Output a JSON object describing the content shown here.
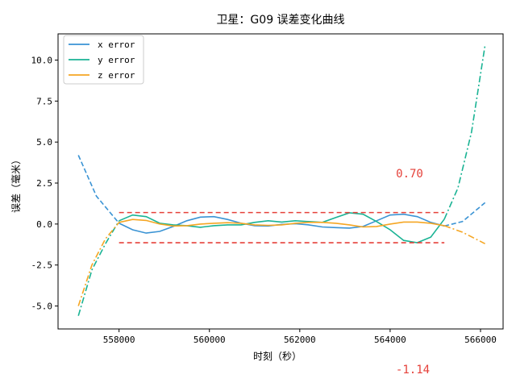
{
  "chart_data": {
    "type": "line",
    "title": "卫星：G09 误差变化曲线",
    "xlabel": "时刻（秒）",
    "ylabel": "误差（毫米）",
    "xlim": [
      556650,
      566500
    ],
    "ylim": [
      -6.4,
      11.6
    ],
    "xticks": [
      558000,
      560000,
      562000,
      564000,
      566000
    ],
    "yticks": [
      -5.0,
      -2.5,
      0.0,
      2.5,
      5.0,
      7.5,
      10.0
    ],
    "legend_position": "top-left",
    "grid": false,
    "fit_range": [
      558000,
      565200
    ],
    "series": [
      {
        "name": "x error",
        "color": "#3a93d4",
        "points": [
          [
            557100,
            4.2
          ],
          [
            557500,
            1.7
          ],
          [
            558000,
            0.05
          ],
          [
            558300,
            -0.35
          ],
          [
            558600,
            -0.55
          ],
          [
            558900,
            -0.45
          ],
          [
            559200,
            -0.15
          ],
          [
            559500,
            0.2
          ],
          [
            559800,
            0.42
          ],
          [
            560100,
            0.45
          ],
          [
            560400,
            0.28
          ],
          [
            560700,
            0.05
          ],
          [
            561000,
            -0.1
          ],
          [
            561300,
            -0.12
          ],
          [
            561600,
            -0.02
          ],
          [
            561900,
            0.02
          ],
          [
            562200,
            -0.05
          ],
          [
            562500,
            -0.18
          ],
          [
            562800,
            -0.22
          ],
          [
            563100,
            -0.25
          ],
          [
            563400,
            -0.15
          ],
          [
            563700,
            0.2
          ],
          [
            564000,
            0.55
          ],
          [
            564300,
            0.6
          ],
          [
            564600,
            0.45
          ],
          [
            564900,
            0.1
          ],
          [
            565200,
            -0.12
          ],
          [
            565600,
            0.15
          ],
          [
            566100,
            1.3
          ]
        ]
      },
      {
        "name": "y error",
        "color": "#1ab394",
        "points": [
          [
            557100,
            -5.6
          ],
          [
            557400,
            -2.8
          ],
          [
            557700,
            -1.2
          ],
          [
            558000,
            0.2
          ],
          [
            558300,
            0.55
          ],
          [
            558600,
            0.45
          ],
          [
            558900,
            0.05
          ],
          [
            559200,
            -0.05
          ],
          [
            559500,
            -0.1
          ],
          [
            559800,
            -0.2
          ],
          [
            560100,
            -0.1
          ],
          [
            560400,
            -0.05
          ],
          [
            560700,
            -0.05
          ],
          [
            561000,
            0.1
          ],
          [
            561300,
            0.2
          ],
          [
            561600,
            0.12
          ],
          [
            561900,
            0.2
          ],
          [
            562200,
            0.15
          ],
          [
            562500,
            0.1
          ],
          [
            562800,
            0.4
          ],
          [
            563100,
            0.68
          ],
          [
            563400,
            0.6
          ],
          [
            563700,
            0.15
          ],
          [
            564000,
            -0.35
          ],
          [
            564300,
            -1.0
          ],
          [
            564600,
            -1.14
          ],
          [
            564900,
            -0.8
          ],
          [
            565200,
            0.3
          ],
          [
            565500,
            2.2
          ],
          [
            565800,
            5.6
          ],
          [
            566100,
            10.9
          ]
        ]
      },
      {
        "name": "z error",
        "color": "#f5a623",
        "points": [
          [
            557100,
            -5.0
          ],
          [
            557400,
            -2.5
          ],
          [
            557700,
            -0.9
          ],
          [
            558000,
            0.1
          ],
          [
            558300,
            0.28
          ],
          [
            558600,
            0.22
          ],
          [
            558900,
            0.0
          ],
          [
            559200,
            -0.12
          ],
          [
            559500,
            -0.1
          ],
          [
            559800,
            0.0
          ],
          [
            560100,
            0.05
          ],
          [
            560400,
            0.08
          ],
          [
            560700,
            0.05
          ],
          [
            561000,
            -0.05
          ],
          [
            561300,
            -0.08
          ],
          [
            561600,
            -0.05
          ],
          [
            561900,
            0.05
          ],
          [
            562200,
            0.1
          ],
          [
            562500,
            0.1
          ],
          [
            562800,
            0.05
          ],
          [
            563100,
            -0.05
          ],
          [
            563400,
            -0.18
          ],
          [
            563700,
            -0.15
          ],
          [
            564000,
            0.0
          ],
          [
            564300,
            0.12
          ],
          [
            564600,
            0.12
          ],
          [
            564900,
            0.05
          ],
          [
            565200,
            -0.1
          ],
          [
            565600,
            -0.5
          ],
          [
            566100,
            -1.2
          ]
        ]
      }
    ],
    "bounds": {
      "upper": 0.7,
      "lower": -1.14,
      "color": "#e5413a",
      "upper_label": "0.70",
      "lower_label": "-1.14"
    }
  }
}
